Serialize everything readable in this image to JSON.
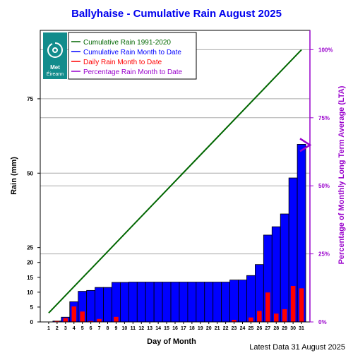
{
  "chart_data": {
    "type": "bar",
    "title": "Ballyhaise - Cumulative Rain August   2025",
    "xlabel": "Day of Month",
    "ylabel": "Rain (mm)",
    "y2label": "Percentage  of Monthly Long Term Average (LTA)",
    "footer": "Latest Data 31 August 2025",
    "logo_text": "Met Éireann",
    "xlim": [
      0,
      32
    ],
    "ylim": [
      0,
      98
    ],
    "y_ticks": [
      0,
      5,
      10,
      15,
      20,
      25,
      50,
      75
    ],
    "y2_ticks": [
      "0%",
      "25%",
      "50%",
      "75%",
      "100%"
    ],
    "y2_tick_values": [
      0,
      25,
      50,
      75,
      100
    ],
    "y2_range": [
      0,
      100
    ],
    "lta_total": 91.5,
    "categories": [
      1,
      2,
      3,
      4,
      5,
      6,
      7,
      8,
      9,
      10,
      11,
      12,
      13,
      14,
      15,
      16,
      17,
      18,
      19,
      20,
      21,
      22,
      23,
      24,
      25,
      26,
      27,
      28,
      29,
      30,
      31
    ],
    "series": [
      {
        "name": "Cumulative Rain 1991-2020",
        "kind": "line",
        "color": "#006600",
        "x": [
          1,
          31
        ],
        "values": [
          3.0,
          91.5
        ]
      },
      {
        "name": "Cumulative Rain Month to Date",
        "kind": "bar",
        "color": "#0000ff",
        "values": [
          0.0,
          0.3,
          1.6,
          6.8,
          10.3,
          10.6,
          11.6,
          11.6,
          13.3,
          13.3,
          13.4,
          13.4,
          13.4,
          13.4,
          13.4,
          13.4,
          13.4,
          13.4,
          13.4,
          13.4,
          13.4,
          13.4,
          14.1,
          14.1,
          15.6,
          19.3,
          29.2,
          32.0,
          36.3,
          48.4,
          59.7
        ]
      },
      {
        "name": "Daily Rain Month to Date",
        "kind": "bar",
        "color": "#ff0000",
        "values": [
          0.0,
          0.3,
          1.3,
          5.2,
          3.5,
          0.3,
          1.0,
          0.0,
          1.7,
          0.0,
          0.1,
          0.0,
          0.0,
          0.0,
          0.0,
          0.0,
          0.0,
          0.0,
          0.0,
          0.0,
          0.0,
          0.0,
          0.7,
          0.0,
          1.5,
          3.7,
          9.9,
          2.8,
          4.3,
          12.1,
          11.3
        ]
      },
      {
        "name": "Percentage Rain Month to Date",
        "kind": "marker",
        "color": "#9900cc",
        "value_percent": 65
      }
    ],
    "grid": true,
    "legend_position": "top-left"
  }
}
